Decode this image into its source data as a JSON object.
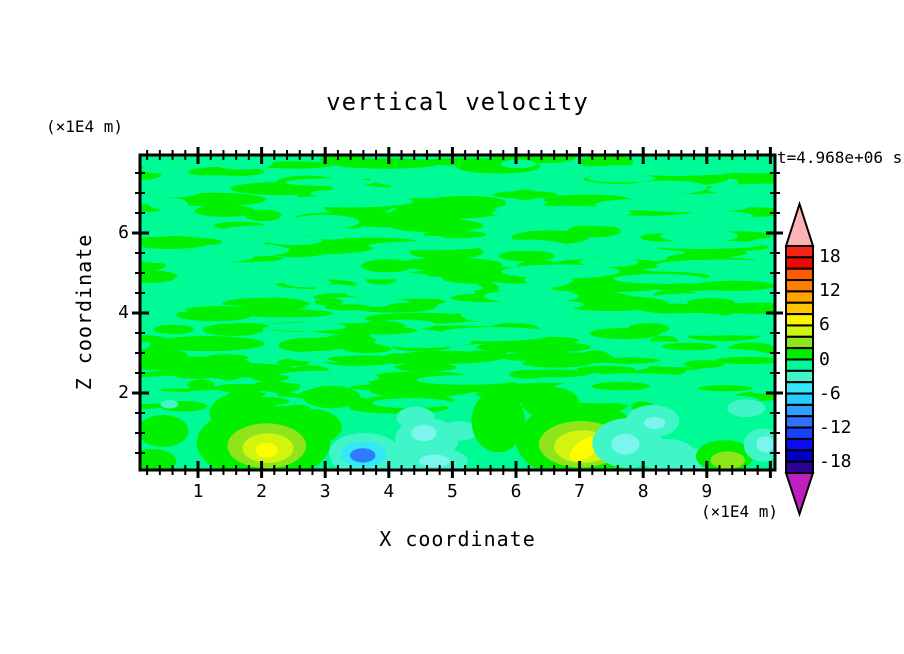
{
  "header": {
    "title": "vertical velocity",
    "z_axis_unit": "(×1E4 m)",
    "time_label": "t=4.968e+06 s"
  },
  "axes": {
    "x": {
      "label": "X coordinate",
      "unit": "(×1E4 m)",
      "tick_labels": [
        "1",
        "2",
        "3",
        "4",
        "5",
        "6",
        "7",
        "8",
        "9"
      ],
      "minor_tick_step": 0.2,
      "range_approx": [
        0.1,
        10.05
      ]
    },
    "z": {
      "label": "Z coordinate",
      "unit": "(×1E4 m)",
      "tick_labels": [
        "2",
        "4",
        "6"
      ],
      "tick_values": [
        2,
        4,
        6
      ],
      "minor_tick_step": 0.5,
      "range_approx": [
        0.08,
        7.95
      ]
    }
  },
  "chart_data": {
    "type": "filled_contour",
    "title": "vertical velocity",
    "xlabel": "X coordinate",
    "x_unit": "(×1E4 m)",
    "ylabel": "Z coordinate",
    "z_unit": "(×1E4 m)",
    "time_annotation": "t=4.968e+06 s",
    "x_ticks": [
      1,
      2,
      3,
      4,
      5,
      6,
      7,
      8,
      9
    ],
    "z_ticks": [
      2,
      4,
      6
    ],
    "x_range": [
      0.09,
      10.07
    ],
    "z_range": [
      0.08,
      7.95
    ],
    "grid": false,
    "legend_position": "right-colorbar",
    "contour_levels": {
      "min": -20,
      "max": 20,
      "step": 2
    },
    "colorbar": {
      "tick_labels": [
        "18",
        "12",
        "6",
        "0",
        "-6",
        "-12",
        "-18"
      ],
      "label_boundary_indices": [
        1,
        4,
        7,
        10,
        13,
        16,
        19
      ],
      "box_colors_top_to_bottom": [
        "#fb2317",
        "#ef0905",
        "#ff5a00",
        "#ff7f00",
        "#ffa300",
        "#ffc600",
        "#fdf200",
        "#d2f50f",
        "#8ee61a",
        "#00f000",
        "#00fa96",
        "#40f5c8",
        "#35e8f7",
        "#25ccff",
        "#2f9eff",
        "#2f70ff",
        "#1743ff",
        "#0a0af5",
        "#0000c2",
        "#2e0096"
      ],
      "over_arrow_color": "#fbb3b8",
      "under_arrow_color": "#bf1fbf"
    },
    "palette": {
      "green": "#00f000",
      "spring": "#00fa96",
      "chartreuse": "#8ee61a",
      "ygreen": "#d2f50f",
      "yellow": "#fdfd00",
      "aqua": "#40f5c8",
      "cyan": "#35e8f7",
      "pale": "#7df5ef",
      "blue": "#2f7dff"
    },
    "background_value_band": "spring",
    "texture": {
      "seed": 77,
      "layers": [
        {
          "color": "green",
          "count": 175,
          "z": [
            1.55,
            7.95
          ],
          "rx_units": [
            0.19,
            0.91
          ],
          "rz_units": [
            0.09,
            0.19
          ]
        },
        {
          "color": "spring",
          "count": 100,
          "z": [
            1.7,
            7.95
          ],
          "rx_units": [
            0.25,
            1.1
          ],
          "rz_units": [
            0.09,
            0.18
          ]
        },
        {
          "color": "green",
          "count": 60,
          "z": [
            1.55,
            4.3
          ],
          "rx_units": [
            0.16,
            0.6
          ],
          "rz_units": [
            0.075,
            0.14
          ]
        }
      ]
    },
    "features": [
      [
        2.03,
        0.75,
        1.05,
        0.92,
        "green",
        0
      ],
      [
        1.7,
        1.5,
        0.52,
        0.5,
        "green",
        0
      ],
      [
        2.78,
        1.15,
        0.48,
        0.45,
        "green",
        0
      ],
      [
        0.45,
        1.05,
        0.4,
        0.4,
        "green",
        0
      ],
      [
        0.28,
        0.3,
        0.38,
        0.3,
        "green",
        0
      ],
      [
        3.1,
        1.9,
        0.45,
        0.28,
        "green",
        0
      ],
      [
        2.08,
        0.68,
        0.62,
        0.56,
        "chartreuse",
        0
      ],
      [
        2.1,
        0.62,
        0.4,
        0.37,
        "ygreen",
        0
      ],
      [
        2.08,
        0.57,
        0.18,
        0.19,
        "yellow",
        0
      ],
      [
        3.95,
        0.28,
        0.85,
        0.3,
        "aqua",
        0
      ],
      [
        3.62,
        0.5,
        0.56,
        0.5,
        "aqua",
        0
      ],
      [
        3.6,
        0.47,
        0.36,
        0.32,
        "cyan",
        0
      ],
      [
        3.59,
        0.44,
        0.2,
        0.18,
        "blue",
        0
      ],
      [
        4.6,
        0.85,
        0.5,
        0.52,
        "aqua",
        0
      ],
      [
        4.78,
        0.3,
        0.46,
        0.32,
        "aqua",
        0
      ],
      [
        4.42,
        1.38,
        0.3,
        0.28,
        "aqua",
        0
      ],
      [
        5.1,
        1.05,
        0.32,
        0.24,
        "aqua",
        0
      ],
      [
        4.55,
        1.0,
        0.2,
        0.2,
        "pale",
        0
      ],
      [
        4.72,
        0.3,
        0.24,
        0.16,
        "pale",
        0
      ],
      [
        5.72,
        1.3,
        0.42,
        0.78,
        "green",
        0
      ],
      [
        7.0,
        0.8,
        1.0,
        0.95,
        "green",
        0
      ],
      [
        6.55,
        1.75,
        0.45,
        0.4,
        "green",
        0
      ],
      [
        7.02,
        0.72,
        0.66,
        0.58,
        "chartreuse",
        0
      ],
      [
        7.05,
        0.66,
        0.45,
        0.41,
        "ygreen",
        0
      ],
      [
        7.08,
        0.6,
        0.27,
        0.22,
        "yellow",
        -35
      ],
      [
        7.75,
        0.75,
        0.55,
        0.62,
        "aqua",
        0
      ],
      [
        8.15,
        1.3,
        0.42,
        0.4,
        "aqua",
        0
      ],
      [
        8.38,
        0.45,
        0.45,
        0.4,
        "aqua",
        0
      ],
      [
        8.8,
        0.33,
        0.35,
        0.28,
        "aqua",
        0
      ],
      [
        7.72,
        0.72,
        0.22,
        0.26,
        "pale",
        0
      ],
      [
        8.18,
        1.25,
        0.17,
        0.15,
        "pale",
        0
      ],
      [
        9.28,
        0.42,
        0.45,
        0.4,
        "green",
        0
      ],
      [
        9.33,
        0.32,
        0.27,
        0.22,
        "chartreuse",
        0
      ],
      [
        9.62,
        1.62,
        0.3,
        0.22,
        "aqua",
        0
      ],
      [
        9.88,
        0.7,
        0.3,
        0.42,
        "aqua",
        0
      ],
      [
        9.92,
        0.72,
        0.14,
        0.2,
        "pale",
        0
      ],
      [
        0.55,
        1.72,
        0.14,
        0.11,
        "aqua",
        0
      ]
    ]
  }
}
